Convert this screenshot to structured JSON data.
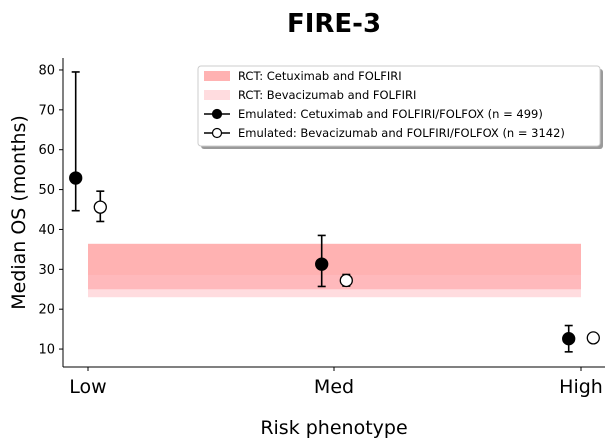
{
  "chart_data": {
    "type": "scatter",
    "title": "FIRE-3",
    "xlabel": "Risk phenotype",
    "ylabel": "Median OS (months)",
    "categories": [
      "Low",
      "Med",
      "High"
    ],
    "ylim": [
      5.5,
      83
    ],
    "yticks": [
      10,
      20,
      30,
      40,
      50,
      60,
      70,
      80
    ],
    "legend_position": "upper-right",
    "bands": [
      {
        "name": "RCT: Cetuximab and FOLFIRI",
        "ymin": 25.0,
        "ymax": 36.4,
        "color": "#ff7f7f",
        "opacity": 0.6
      },
      {
        "name": "RCT: Bevacizumab and FOLFIRI",
        "ymin": 23.0,
        "ymax": 28.6,
        "color": "#ffc0c4",
        "opacity": 0.55
      }
    ],
    "series": [
      {
        "name": "Emulated: Cetuximab and FOLFIRI/FOLFOX (n = 499)",
        "marker": "filled",
        "x_offset": -0.05,
        "points": [
          {
            "category": "Low",
            "y": 52.9,
            "lower": 44.7,
            "upper": 79.5
          },
          {
            "category": "Med",
            "y": 31.3,
            "lower": 25.7,
            "upper": 38.5
          },
          {
            "category": "High",
            "y": 12.6,
            "lower": 9.3,
            "upper": 15.9
          }
        ]
      },
      {
        "name": "Emulated: Bevacizumab and FOLFIRI/FOLFOX (n = 3142)",
        "marker": "open",
        "x_offset": 0.05,
        "points": [
          {
            "category": "Low",
            "y": 45.6,
            "lower": 42.0,
            "upper": 49.6
          },
          {
            "category": "Med",
            "y": 27.2,
            "lower": 25.8,
            "upper": 28.7
          },
          {
            "category": "High",
            "y": 12.8,
            "lower": 11.9,
            "upper": 13.6
          }
        ]
      }
    ]
  }
}
